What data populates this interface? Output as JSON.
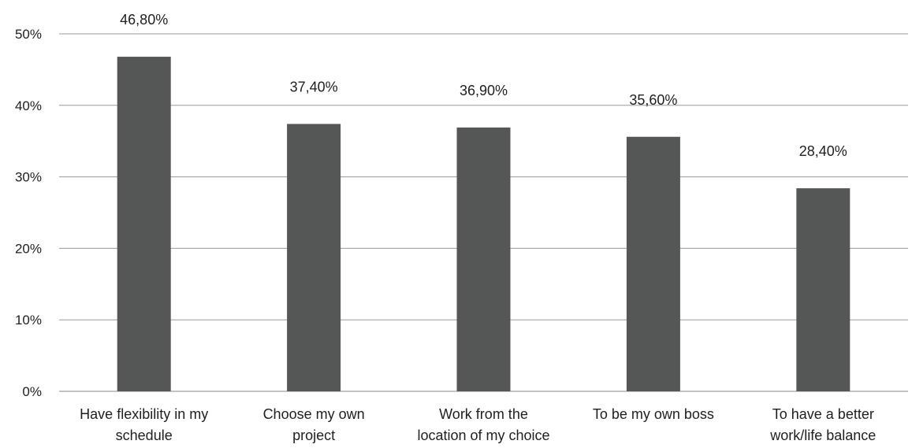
{
  "chart_data": {
    "type": "bar",
    "title": "",
    "xlabel": "",
    "ylabel": "",
    "ylim": [
      0,
      50
    ],
    "yticks": [
      {
        "value": 0,
        "label": "0%"
      },
      {
        "value": 10,
        "label": "10%"
      },
      {
        "value": 20,
        "label": "20%"
      },
      {
        "value": 30,
        "label": "30%"
      },
      {
        "value": 40,
        "label": "40%"
      },
      {
        "value": 50,
        "label": "50%"
      }
    ],
    "grid": true,
    "legend": "none",
    "bar_color": "#555756",
    "categories": [
      [
        "Have flexibility in my",
        "schedule"
      ],
      [
        "Choose my own",
        "project"
      ],
      [
        "Work from the",
        "location of my choice"
      ],
      [
        "To be my own boss"
      ],
      [
        "To have a better",
        "work/life balance"
      ]
    ],
    "values": [
      46.8,
      37.4,
      36.9,
      35.6,
      28.4
    ],
    "data_labels": [
      "46,80%",
      "37,40%",
      "36,90%",
      "35,60%",
      "28,40%"
    ]
  }
}
